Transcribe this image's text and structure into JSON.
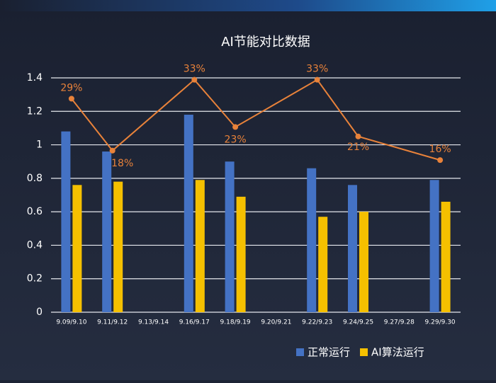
{
  "chart_data": {
    "type": "bar-line",
    "title": "AI节能对比数据",
    "categories": [
      "9.09/9.10",
      "9.11/9.12",
      "9.13/9.14",
      "9.16/9.17",
      "9.18/9.19",
      "9.20/9.21",
      "9.22/9.23",
      "9.24/9.25",
      "9.27/9.28",
      "9.29/9.30"
    ],
    "series": [
      {
        "name": "正常运行",
        "color": "#4472c4",
        "type": "bar",
        "values": [
          1.08,
          0.96,
          null,
          1.18,
          0.9,
          null,
          0.86,
          0.76,
          null,
          0.79
        ]
      },
      {
        "name": "AI算法运行",
        "color": "#f5c000",
        "type": "bar",
        "values": [
          0.76,
          0.78,
          null,
          0.79,
          0.69,
          null,
          0.57,
          0.6,
          null,
          0.66
        ]
      },
      {
        "color": "#e8823a",
        "type": "line",
        "axis": "y2",
        "span_gaps": true,
        "values": [
          29,
          18,
          null,
          33,
          23,
          null,
          33,
          21,
          null,
          16
        ],
        "value_labels": [
          "29%",
          "18%",
          null,
          "33%",
          "23%",
          null,
          "33%",
          "21%",
          null,
          "16%"
        ]
      }
    ],
    "ylim": [
      0,
      1.4
    ],
    "yticks": [
      0,
      0.2,
      0.4,
      0.6,
      0.8,
      1,
      1.2,
      1.4
    ],
    "y2lim": [
      -16.2,
      33.4
    ],
    "grid": true,
    "legend": "bottom-right"
  }
}
